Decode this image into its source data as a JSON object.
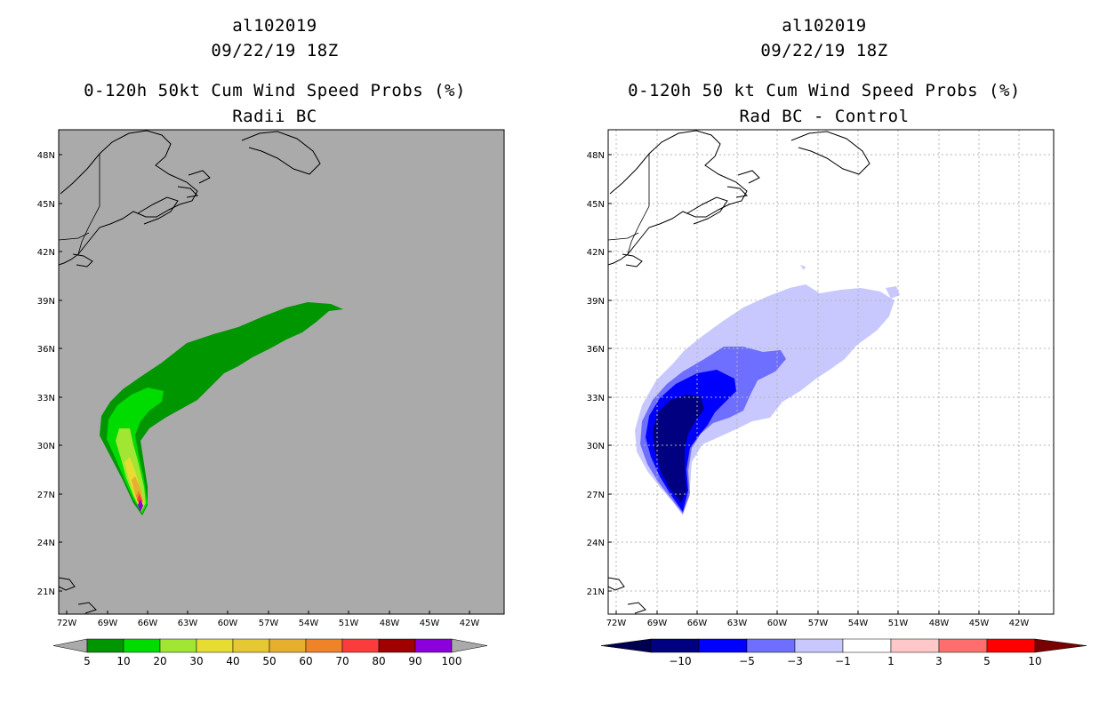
{
  "left": {
    "storm_id": "al102019",
    "datetime": "09/22/19 18Z",
    "title": "0-120h 50kt Cum Wind Speed Probs (%)",
    "subtitle": "Radii BC",
    "colors": {
      "background": "#aaaaaa"
    },
    "legend": {
      "labels": [
        "5",
        "10",
        "20",
        "30",
        "40",
        "50",
        "60",
        "70",
        "80",
        "90",
        "100"
      ],
      "colors": [
        "#009600",
        "#00dc00",
        "#a0e632",
        "#e6dc32",
        "#e6c832",
        "#e6af2d",
        "#f08228",
        "#fa3c3c",
        "#a00000",
        "#8c00dc"
      ]
    }
  },
  "right": {
    "storm_id": "al102019",
    "datetime": "09/22/19 18Z",
    "title": "0-120h 50 kt Cum Wind Speed Probs (%)",
    "subtitle": "Rad BC - Control",
    "legend": {
      "labels": [
        "−10",
        "−5",
        "−3",
        "−1",
        "1",
        "3",
        "5",
        "10"
      ],
      "colors": [
        "#000080",
        "#0000ff",
        "#6e6eff",
        "#c8c8ff",
        "#ffffff",
        "#ffc8c8",
        "#ff6e6e",
        "#ff0000"
      ],
      "end_colors": [
        "#000050",
        "#780000"
      ]
    }
  },
  "axes": {
    "lon_labels": [
      "72W",
      "69W",
      "66W",
      "63W",
      "60W",
      "57W",
      "54W",
      "51W",
      "48W",
      "45W",
      "42W"
    ],
    "lat_labels": [
      "48N",
      "45N",
      "42N",
      "39N",
      "36N",
      "33N",
      "30N",
      "27N",
      "24N",
      "21N"
    ]
  }
}
